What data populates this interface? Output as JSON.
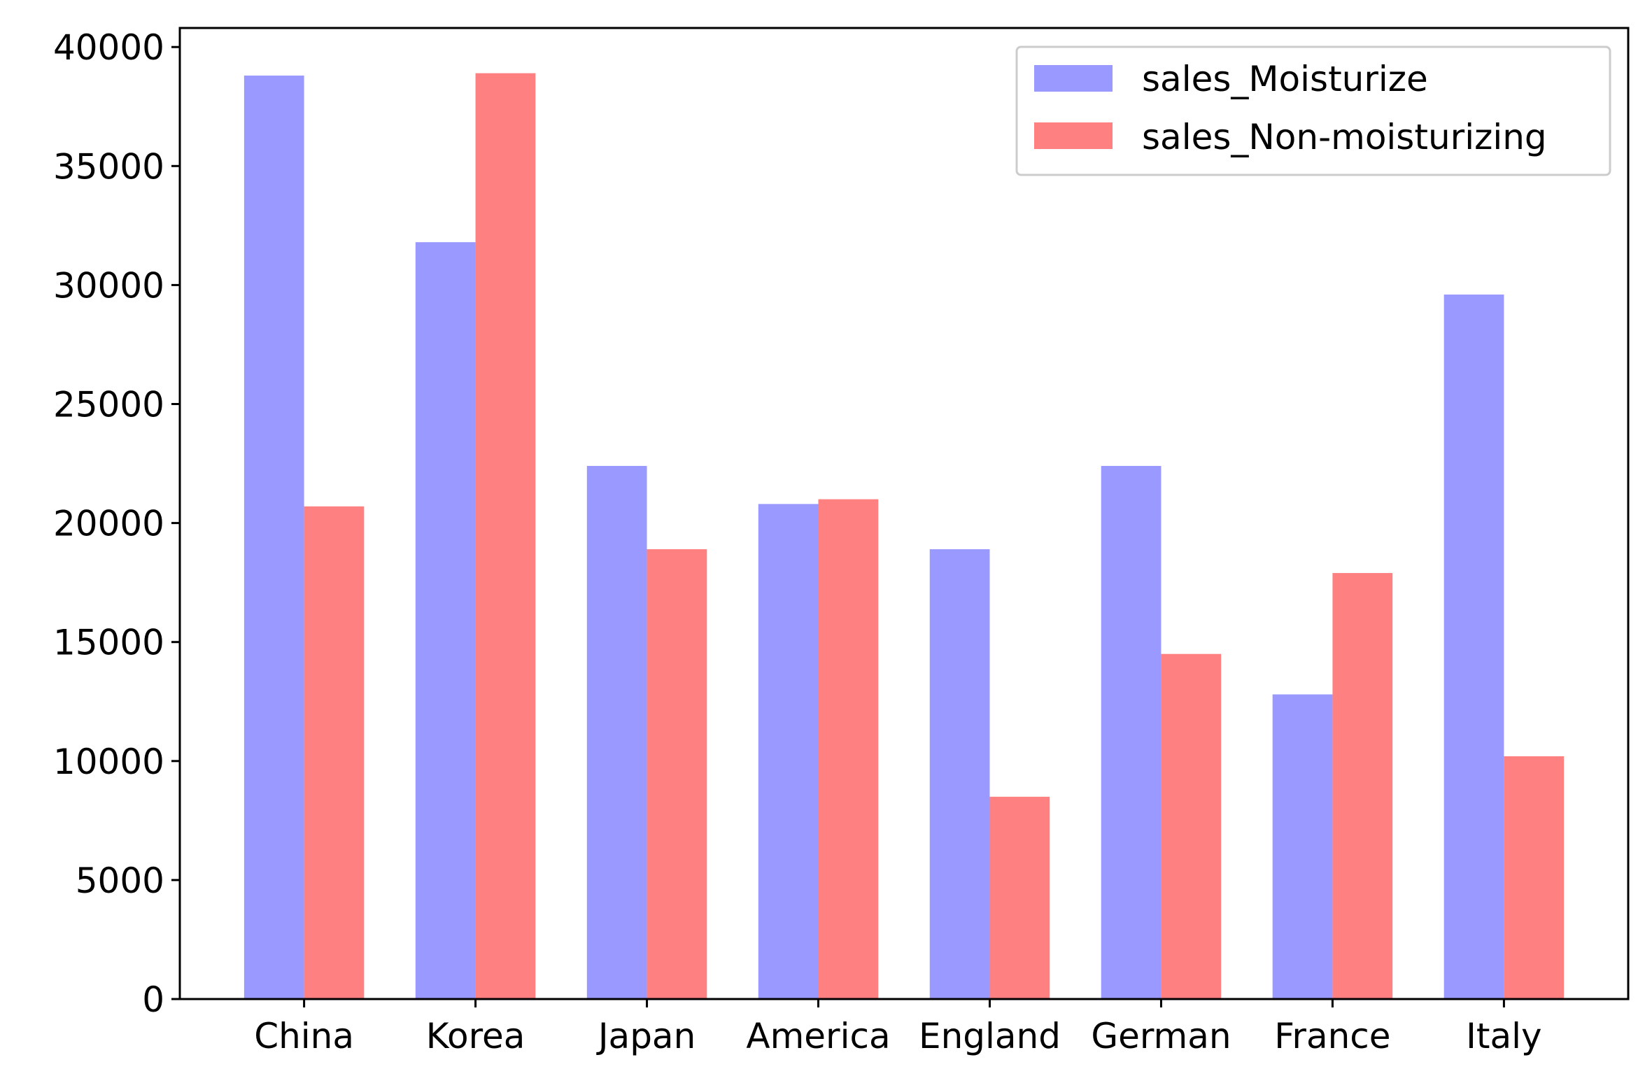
{
  "chart_data": {
    "type": "bar",
    "title": "",
    "xlabel": "",
    "ylabel": "",
    "categories": [
      "China",
      "Korea",
      "Japan",
      "America",
      "England",
      "German",
      "France",
      "Italy"
    ],
    "series": [
      {
        "name": "sales_Moisturize",
        "color": "#9999ff",
        "values": [
          38800,
          31800,
          22400,
          20800,
          18900,
          22400,
          12800,
          29600
        ]
      },
      {
        "name": "sales_Non-moisturizing",
        "color": "#ff8080",
        "values": [
          20700,
          38900,
          18900,
          21000,
          8500,
          14500,
          17900,
          10200
        ]
      }
    ],
    "ylim": [
      0,
      40800
    ],
    "yticks": [
      0,
      5000,
      10000,
      15000,
      20000,
      25000,
      30000,
      35000,
      40000
    ],
    "grid": false,
    "legend_position": "top-right"
  }
}
